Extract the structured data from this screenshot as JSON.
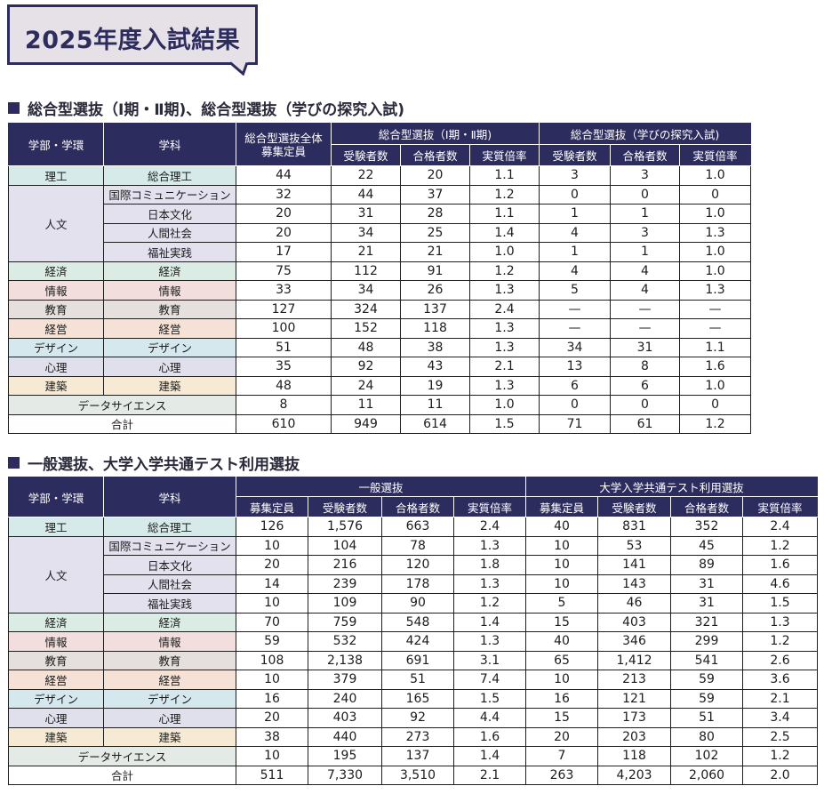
{
  "page_title": "2025年度入試結果",
  "colors": {
    "navy": "#2d2c5e",
    "badge_bg": "#e6e1e6"
  },
  "table1": {
    "heading": "総合型選抜（Ⅰ期・Ⅱ期)、総合型選抜（学びの探究入試)",
    "headers": {
      "faculty": "学部・学環",
      "subject": "学科",
      "capacity": "総合型選抜全体募集定員",
      "group_a": "総合型選抜（Ⅰ期・Ⅱ期)",
      "group_b": "総合型選抜（学びの探究入試)",
      "applicants": "受験者数",
      "passers": "合格者数",
      "ratio": "実質倍率"
    },
    "faculties": [
      "理工",
      "人文",
      "経済",
      "情報",
      "教育",
      "経営",
      "デザイン",
      "心理",
      "建築"
    ],
    "rows": [
      {
        "subject": "総合理工",
        "cells": [
          "44",
          "22",
          "20",
          "1.1",
          "3",
          "3",
          "1.0"
        ]
      },
      {
        "subject": "国際コミュニケーション",
        "cells": [
          "32",
          "44",
          "37",
          "1.2",
          "0",
          "0",
          "0"
        ]
      },
      {
        "subject": "日本文化",
        "cells": [
          "20",
          "31",
          "28",
          "1.1",
          "1",
          "1",
          "1.0"
        ]
      },
      {
        "subject": "人間社会",
        "cells": [
          "20",
          "34",
          "25",
          "1.4",
          "4",
          "3",
          "1.3"
        ]
      },
      {
        "subject": "福祉実践",
        "cells": [
          "17",
          "21",
          "21",
          "1.0",
          "1",
          "1",
          "1.0"
        ]
      },
      {
        "subject": "経済",
        "cells": [
          "75",
          "112",
          "91",
          "1.2",
          "4",
          "4",
          "1.0"
        ]
      },
      {
        "subject": "情報",
        "cells": [
          "33",
          "34",
          "26",
          "1.3",
          "5",
          "4",
          "1.3"
        ]
      },
      {
        "subject": "教育",
        "cells": [
          "127",
          "324",
          "137",
          "2.4",
          "—",
          "—",
          "—"
        ]
      },
      {
        "subject": "経営",
        "cells": [
          "100",
          "152",
          "118",
          "1.3",
          "—",
          "—",
          "—"
        ]
      },
      {
        "subject": "デザイン",
        "cells": [
          "51",
          "48",
          "38",
          "1.3",
          "34",
          "31",
          "1.1"
        ]
      },
      {
        "subject": "心理",
        "cells": [
          "35",
          "92",
          "43",
          "2.1",
          "13",
          "8",
          "1.6"
        ]
      },
      {
        "subject": "建築",
        "cells": [
          "48",
          "24",
          "19",
          "1.3",
          "6",
          "6",
          "1.0"
        ]
      },
      {
        "subject": "データサイエンス",
        "cells": [
          "8",
          "11",
          "11",
          "1.0",
          "0",
          "0",
          "0"
        ]
      },
      {
        "subject": "合計",
        "cells": [
          "610",
          "949",
          "614",
          "1.5",
          "71",
          "61",
          "1.2"
        ]
      }
    ]
  },
  "table2": {
    "heading": "一般選抜、大学入学共通テスト利用選抜",
    "headers": {
      "faculty": "学部・学環",
      "subject": "学科",
      "group_a": "一般選抜",
      "group_b": "大学入学共通テスト利用選抜",
      "capacity": "募集定員",
      "applicants": "受験者数",
      "passers": "合格者数",
      "ratio": "実質倍率"
    },
    "faculties": [
      "理工",
      "人文",
      "経済",
      "情報",
      "教育",
      "経営",
      "デザイン",
      "心理",
      "建築"
    ],
    "rows": [
      {
        "subject": "総合理工",
        "cells": [
          "126",
          "1,576",
          "663",
          "2.4",
          "40",
          "831",
          "352",
          "2.4"
        ]
      },
      {
        "subject": "国際コミュニケーション",
        "cells": [
          "10",
          "104",
          "78",
          "1.3",
          "10",
          "53",
          "45",
          "1.2"
        ]
      },
      {
        "subject": "日本文化",
        "cells": [
          "20",
          "216",
          "120",
          "1.8",
          "10",
          "141",
          "89",
          "1.6"
        ]
      },
      {
        "subject": "人間社会",
        "cells": [
          "14",
          "239",
          "178",
          "1.3",
          "10",
          "143",
          "31",
          "4.6"
        ]
      },
      {
        "subject": "福祉実践",
        "cells": [
          "10",
          "109",
          "90",
          "1.2",
          "5",
          "46",
          "31",
          "1.5"
        ]
      },
      {
        "subject": "経済",
        "cells": [
          "70",
          "759",
          "548",
          "1.4",
          "15",
          "403",
          "321",
          "1.3"
        ]
      },
      {
        "subject": "情報",
        "cells": [
          "59",
          "532",
          "424",
          "1.3",
          "40",
          "346",
          "299",
          "1.2"
        ]
      },
      {
        "subject": "教育",
        "cells": [
          "108",
          "2,138",
          "691",
          "3.1",
          "65",
          "1,412",
          "541",
          "2.6"
        ]
      },
      {
        "subject": "経営",
        "cells": [
          "10",
          "379",
          "51",
          "7.4",
          "10",
          "213",
          "59",
          "3.6"
        ]
      },
      {
        "subject": "デザイン",
        "cells": [
          "16",
          "240",
          "165",
          "1.5",
          "16",
          "121",
          "59",
          "2.1"
        ]
      },
      {
        "subject": "心理",
        "cells": [
          "20",
          "403",
          "92",
          "4.4",
          "15",
          "173",
          "51",
          "3.4"
        ]
      },
      {
        "subject": "建築",
        "cells": [
          "38",
          "440",
          "273",
          "1.6",
          "20",
          "203",
          "80",
          "2.5"
        ]
      },
      {
        "subject": "データサイエンス",
        "cells": [
          "10",
          "195",
          "137",
          "1.4",
          "7",
          "118",
          "102",
          "1.2"
        ]
      },
      {
        "subject": "合計",
        "cells": [
          "511",
          "7,330",
          "3,510",
          "2.1",
          "263",
          "4,203",
          "2,060",
          "2.0"
        ]
      }
    ]
  }
}
